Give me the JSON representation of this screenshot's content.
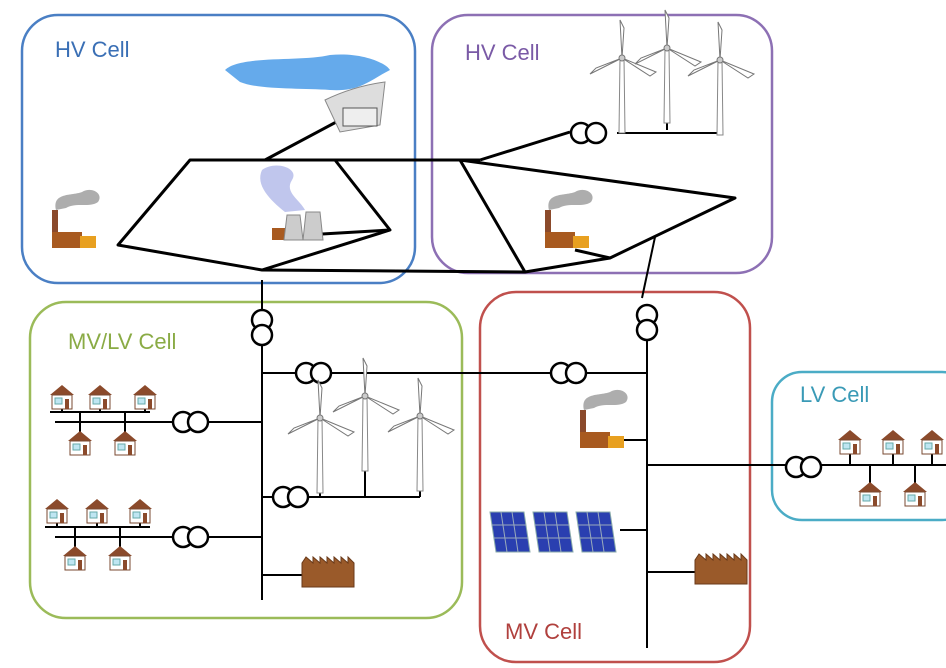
{
  "cells": [
    {
      "label": "HV Cell"
    },
    {
      "label": "HV Cell"
    },
    {
      "label": "MV/LV Cell"
    },
    {
      "label": "MV Cell"
    },
    {
      "label": "LV Cell"
    }
  ]
}
